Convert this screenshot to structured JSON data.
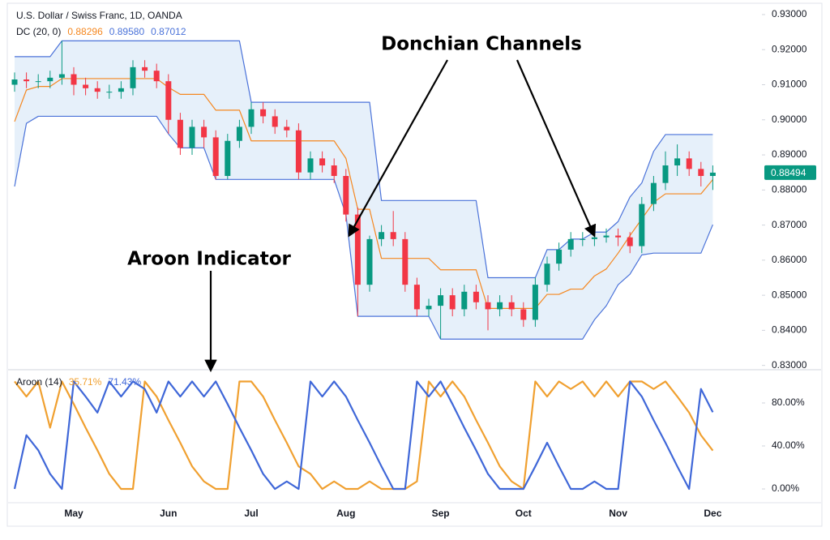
{
  "chart_data": [
    {
      "type": "candlestick",
      "title": "U.S. Dollar / Swiss Franc, 1D, OANDA",
      "indicator_label": "DC (20, 0)",
      "open": [
        0.91,
        0.9115,
        0.911,
        0.911,
        0.912,
        0.913,
        0.91,
        0.909,
        0.908,
        0.908,
        0.909,
        0.915,
        0.914,
        0.911,
        0.9,
        0.892,
        0.898,
        0.895,
        0.884,
        0.894,
        0.898,
        0.903,
        0.901,
        0.898,
        0.897,
        0.885,
        0.889,
        0.887,
        0.884,
        0.873,
        0.853,
        0.866,
        0.868,
        0.866,
        0.853,
        0.846,
        0.847,
        0.85,
        0.846,
        0.851,
        0.848,
        0.846,
        0.848,
        0.846,
        0.843,
        0.853,
        0.859,
        0.863,
        0.866,
        0.866,
        0.8665,
        0.867,
        0.8665,
        0.864,
        0.876,
        0.882,
        0.887,
        0.889,
        0.886,
        0.884
      ],
      "high": [
        0.9135,
        0.9135,
        0.913,
        0.914,
        0.9225,
        0.915,
        0.912,
        0.911,
        0.91,
        0.911,
        0.917,
        0.917,
        0.916,
        0.913,
        0.902,
        0.9,
        0.9,
        0.897,
        0.896,
        0.9,
        0.905,
        0.905,
        0.903,
        0.9,
        0.899,
        0.891,
        0.891,
        0.889,
        0.886,
        0.875,
        0.867,
        0.87,
        0.874,
        0.868,
        0.855,
        0.849,
        0.852,
        0.852,
        0.853,
        0.853,
        0.85,
        0.85,
        0.85,
        0.848,
        0.855,
        0.861,
        0.865,
        0.868,
        0.868,
        0.868,
        0.869,
        0.869,
        0.868,
        0.878,
        0.884,
        0.891,
        0.893,
        0.891,
        0.888,
        0.887
      ],
      "low": [
        0.908,
        0.909,
        0.909,
        0.909,
        0.91,
        0.907,
        0.907,
        0.906,
        0.906,
        0.906,
        0.907,
        0.912,
        0.909,
        0.896,
        0.89,
        0.89,
        0.892,
        0.883,
        0.883,
        0.892,
        0.896,
        0.899,
        0.896,
        0.895,
        0.883,
        0.883,
        0.885,
        0.882,
        0.871,
        0.844,
        0.851,
        0.864,
        0.864,
        0.851,
        0.844,
        0.844,
        0.8375,
        0.844,
        0.844,
        0.846,
        0.84,
        0.844,
        0.844,
        0.841,
        0.841,
        0.851,
        0.857,
        0.861,
        0.864,
        0.864,
        0.865,
        0.864,
        0.862,
        0.862,
        0.874,
        0.88,
        0.884,
        0.884,
        0.881,
        0.88
      ],
      "close": [
        0.9115,
        0.911,
        0.911,
        0.912,
        0.913,
        0.91,
        0.909,
        0.908,
        0.908,
        0.909,
        0.915,
        0.914,
        0.911,
        0.9,
        0.892,
        0.898,
        0.895,
        0.884,
        0.894,
        0.898,
        0.903,
        0.901,
        0.898,
        0.897,
        0.885,
        0.889,
        0.887,
        0.884,
        0.873,
        0.853,
        0.866,
        0.868,
        0.866,
        0.853,
        0.846,
        0.847,
        0.85,
        0.846,
        0.851,
        0.848,
        0.846,
        0.848,
        0.846,
        0.843,
        0.853,
        0.859,
        0.863,
        0.866,
        0.866,
        0.8665,
        0.867,
        0.8665,
        0.864,
        0.876,
        0.882,
        0.887,
        0.889,
        0.886,
        0.884,
        0.88494
      ],
      "up_color": "#089981",
      "down_color": "#f23645",
      "channel_fill": "#e6f0fa",
      "series": [
        {
          "color": "#f5871f",
          "legend_label": "0.88296",
          "values": [
            0.8995,
            0.9085,
            0.9095,
            0.9095,
            0.91175,
            0.91175,
            0.91175,
            0.91175,
            0.91175,
            0.91175,
            0.91175,
            0.91175,
            0.91175,
            0.90925,
            0.90725,
            0.90725,
            0.90725,
            0.90275,
            0.90275,
            0.90275,
            0.894,
            0.894,
            0.894,
            0.894,
            0.894,
            0.894,
            0.894,
            0.894,
            0.889,
            0.8745,
            0.8745,
            0.8605,
            0.8605,
            0.8605,
            0.8605,
            0.8605,
            0.85725,
            0.85725,
            0.85725,
            0.85725,
            0.84625,
            0.84625,
            0.84625,
            0.84625,
            0.84625,
            0.85025,
            0.85025,
            0.85175,
            0.85175,
            0.8555,
            0.8575,
            0.862,
            0.867,
            0.87175,
            0.8765,
            0.8789,
            0.8789,
            0.8789,
            0.8789,
            0.88296
          ]
        },
        {
          "color": "#4a72d9",
          "legend_label": "0.89580",
          "values": [
            0.918,
            0.918,
            0.918,
            0.918,
            0.9225,
            0.9225,
            0.9225,
            0.9225,
            0.9225,
            0.9225,
            0.9225,
            0.9225,
            0.9225,
            0.9225,
            0.9225,
            0.9225,
            0.9225,
            0.9225,
            0.9225,
            0.9225,
            0.905,
            0.905,
            0.905,
            0.905,
            0.905,
            0.905,
            0.905,
            0.905,
            0.905,
            0.905,
            0.905,
            0.877,
            0.877,
            0.877,
            0.877,
            0.877,
            0.877,
            0.877,
            0.877,
            0.877,
            0.855,
            0.855,
            0.855,
            0.855,
            0.855,
            0.863,
            0.863,
            0.866,
            0.866,
            0.868,
            0.868,
            0.871,
            0.878,
            0.882,
            0.891,
            0.8958,
            0.8958,
            0.8958,
            0.8958,
            0.8958
          ]
        },
        {
          "color": "#4a72d9",
          "legend_label": "0.87012",
          "values": [
            0.881,
            0.899,
            0.901,
            0.901,
            0.901,
            0.901,
            0.901,
            0.901,
            0.901,
            0.901,
            0.901,
            0.901,
            0.901,
            0.896,
            0.892,
            0.892,
            0.892,
            0.883,
            0.883,
            0.883,
            0.883,
            0.883,
            0.883,
            0.883,
            0.883,
            0.883,
            0.883,
            0.883,
            0.873,
            0.844,
            0.844,
            0.844,
            0.844,
            0.844,
            0.844,
            0.844,
            0.8375,
            0.8375,
            0.8375,
            0.8375,
            0.8375,
            0.8375,
            0.8375,
            0.8375,
            0.8375,
            0.8375,
            0.8375,
            0.8375,
            0.8375,
            0.843,
            0.847,
            0.853,
            0.856,
            0.8615,
            0.862,
            0.862,
            0.862,
            0.862,
            0.862,
            0.87012
          ]
        }
      ],
      "last_price_label": "0.88494",
      "ylim": [
        0.829,
        0.9323
      ],
      "yticks": [
        {
          "value": 0.93,
          "label": "0.93000"
        },
        {
          "value": 0.92,
          "label": "0.92000"
        },
        {
          "value": 0.91,
          "label": "0.91000"
        },
        {
          "value": 0.9,
          "label": "0.90000"
        },
        {
          "value": 0.89,
          "label": "0.89000"
        },
        {
          "value": 0.88,
          "label": "0.88000"
        },
        {
          "value": 0.87,
          "label": "0.87000"
        },
        {
          "value": 0.86,
          "label": "0.86000"
        },
        {
          "value": 0.85,
          "label": "0.85000"
        },
        {
          "value": 0.84,
          "label": "0.84000"
        },
        {
          "value": 0.83,
          "label": "0.83000"
        }
      ]
    },
    {
      "type": "line",
      "title": "Aroon (14)",
      "categories": [
        null,
        null,
        null,
        null,
        null,
        "May",
        null,
        null,
        null,
        null,
        null,
        null,
        null,
        "Jun",
        null,
        null,
        null,
        null,
        null,
        null,
        "Jul",
        null,
        null,
        null,
        null,
        null,
        null,
        null,
        "Aug",
        null,
        null,
        null,
        null,
        null,
        null,
        null,
        "Sep",
        null,
        null,
        null,
        null,
        null,
        null,
        "Oct",
        null,
        null,
        null,
        null,
        null,
        null,
        null,
        "Nov",
        null,
        null,
        null,
        null,
        null,
        null,
        null,
        "Dec"
      ],
      "series": [
        {
          "color": "#f0a030",
          "legend_label": "35.71%",
          "values": [
            100,
            86,
            100,
            57,
            100,
            79,
            57,
            36,
            14,
            0,
            0,
            100,
            86,
            64,
            43,
            21,
            7,
            0,
            0,
            100,
            100,
            86,
            64,
            43,
            21,
            14,
            0,
            7,
            0,
            0,
            7,
            0,
            0,
            0,
            7,
            100,
            86,
            100,
            86,
            64,
            43,
            21,
            7,
            0,
            100,
            86,
            100,
            93,
            100,
            86,
            100,
            86,
            100,
            100,
            93,
            100,
            86,
            71,
            50,
            35.71
          ]
        },
        {
          "color": "#3f67d8",
          "legend_label": "71.43%",
          "values": [
            0,
            50,
            36,
            14,
            0,
            100,
            86,
            71,
            100,
            86,
            100,
            93,
            71,
            100,
            86,
            100,
            86,
            100,
            79,
            57,
            36,
            14,
            0,
            7,
            0,
            100,
            86,
            100,
            86,
            64,
            43,
            21,
            0,
            0,
            100,
            86,
            100,
            79,
            57,
            36,
            14,
            0,
            0,
            0,
            21,
            43,
            21,
            0,
            0,
            7,
            0,
            0,
            100,
            86,
            64,
            43,
            21,
            0,
            93,
            71.43
          ]
        }
      ],
      "ylim": [
        -11.3,
        107.9
      ],
      "yticks": [
        {
          "value": 80,
          "label": "80.00%"
        },
        {
          "value": 40,
          "label": "40.00%"
        },
        {
          "value": 0,
          "label": "0.00%"
        }
      ]
    }
  ],
  "annotations": [
    "Donchian Channels",
    "Aroon Indicator"
  ]
}
